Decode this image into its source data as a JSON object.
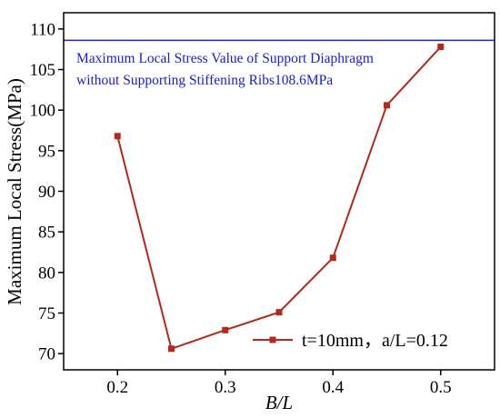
{
  "chart_data": {
    "type": "line",
    "title": "",
    "xlabel": "B/L",
    "ylabel": "Maximum Local Stress(MPa)",
    "xlim": [
      0.15,
      0.55
    ],
    "ylim": [
      68,
      112
    ],
    "x_ticks": [
      "0.2",
      "0.3",
      "0.4",
      "0.5"
    ],
    "y_ticks": [
      "70",
      "75",
      "80",
      "85",
      "90",
      "95",
      "100",
      "105",
      "110"
    ],
    "grid": false,
    "legend_position": "bottom-right",
    "series": [
      {
        "name": "t=10mm，a/L=0.12",
        "color": "#b5281c",
        "marker": "square",
        "x": [
          0.2,
          0.25,
          0.3,
          0.35,
          0.4,
          0.45,
          0.5
        ],
        "y": [
          96.8,
          70.6,
          72.9,
          75.1,
          81.8,
          100.6,
          107.8
        ]
      }
    ],
    "reference_line": {
      "y": 108.6,
      "color": "#2323d6",
      "label_line1": "Maximum Local Stress Value of Support Diaphragm",
      "label_line2": "without Supporting Stiffening Ribs108.6MPa"
    }
  }
}
